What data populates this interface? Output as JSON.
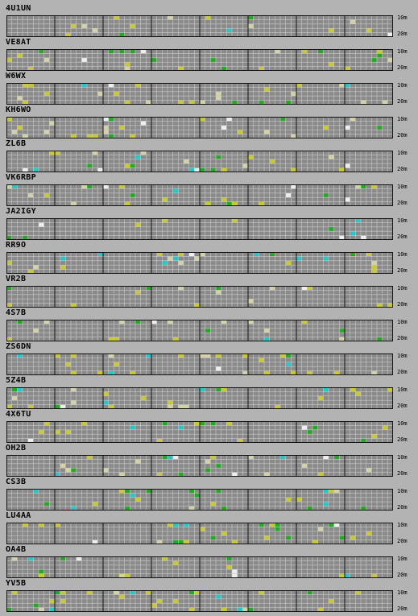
{
  "bands": {
    "top": "10m",
    "bottom": "20m"
  },
  "grid": {
    "segments": 8,
    "columns_per_segment": 9,
    "rows": 5,
    "colors": {
      "background": "#8a8a8a",
      "cell_line": "#c8c8c8",
      "segment_line": "#141414",
      "yellow": "#c8c832",
      "green": "#22aa22",
      "cyan": "#22c8c8",
      "pale": "#d2d2a6",
      "white": "#eeeeee"
    }
  },
  "stations": [
    {
      "call": "4U1UN"
    },
    {
      "call": "VE8AT"
    },
    {
      "call": "W6WX"
    },
    {
      "call": "KH6WO"
    },
    {
      "call": "ZL6B"
    },
    {
      "call": "VK6RBP"
    },
    {
      "call": "JA2IGY"
    },
    {
      "call": "RR9O"
    },
    {
      "call": "VR2B"
    },
    {
      "call": "4S7B"
    },
    {
      "call": "ZS6DN"
    },
    {
      "call": "5Z4B"
    },
    {
      "call": "4X6TU"
    },
    {
      "call": "OH2B"
    },
    {
      "call": "CS3B"
    },
    {
      "call": "LU4AA"
    },
    {
      "call": "OA4B"
    },
    {
      "call": "YV5B"
    }
  ]
}
